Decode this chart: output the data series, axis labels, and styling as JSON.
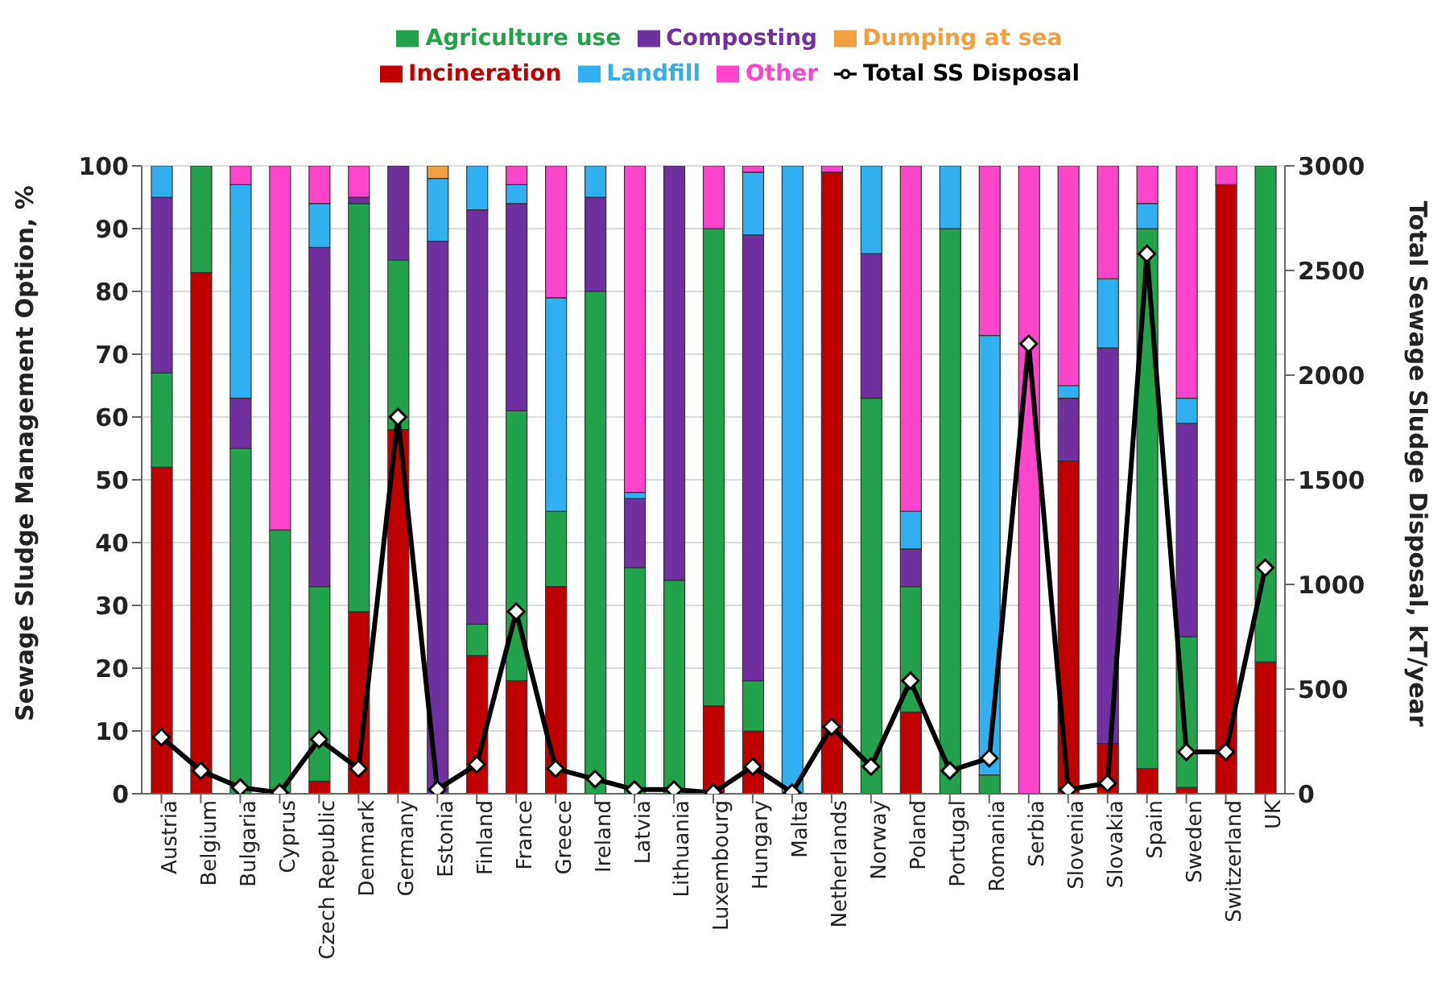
{
  "chart_data": {
    "type": "bar",
    "stacked": true,
    "xlabel": null,
    "ylabel": "Sewage Sludge Management Option, %",
    "y2label": "Total Sewage Sludge Disposal, kT/year",
    "categories": [
      "Austria",
      "Belgium",
      "Bulgaria",
      "Cyprus",
      "Czech Republic",
      "Denmark",
      "Germany",
      "Estonia",
      "Finland",
      "France",
      "Greece",
      "Ireland",
      "Latvia",
      "Lithuania",
      "Luxembourg",
      "Hungary",
      "Malta",
      "Netherlands",
      "Norway",
      "Poland",
      "Portugal",
      "Romania",
      "Serbia",
      "Slovenia",
      "Slovakia",
      "Spain",
      "Sweden",
      "Switzerland",
      "UK"
    ],
    "series": [
      {
        "name": "Incineration",
        "color": "#c00000",
        "values": [
          52,
          83,
          0,
          0,
          2,
          29,
          58,
          0,
          22,
          18,
          33,
          0,
          0,
          0,
          14,
          10,
          0,
          99,
          0,
          13,
          0,
          0,
          0,
          53,
          8,
          4,
          1,
          97,
          21
        ]
      },
      {
        "name": "Agriculture use",
        "color": "#22a24a",
        "values": [
          15,
          17,
          55,
          42,
          31,
          65,
          27,
          0,
          5,
          43,
          12,
          80,
          36,
          34,
          76,
          8,
          0,
          0,
          63,
          20,
          90,
          3,
          0,
          0,
          0,
          86,
          24,
          0,
          79
        ]
      },
      {
        "name": "Composting",
        "color": "#7030a0",
        "values": [
          28,
          0,
          8,
          0,
          54,
          1,
          15,
          88,
          66,
          33,
          0,
          15,
          11,
          66,
          0,
          71,
          0,
          0,
          23,
          6,
          0,
          0,
          0,
          10,
          63,
          0,
          34,
          0,
          0
        ]
      },
      {
        "name": "Landfill",
        "color": "#30b0f0",
        "values": [
          5,
          0,
          34,
          0,
          7,
          0,
          0,
          10,
          7,
          3,
          34,
          5,
          1,
          0,
          0,
          10,
          100,
          0,
          14,
          6,
          10,
          70,
          0,
          2,
          11,
          4,
          4,
          0,
          0
        ]
      },
      {
        "name": "Dumping at sea",
        "color": "#f0a040",
        "values": [
          0,
          0,
          0,
          0,
          0,
          0,
          0,
          2,
          0,
          0,
          0,
          0,
          0,
          0,
          0,
          0,
          0,
          0,
          0,
          0,
          0,
          0,
          0,
          0,
          0,
          0,
          0,
          0,
          0
        ]
      },
      {
        "name": "Other",
        "color": "#ff44cc",
        "values": [
          0,
          0,
          3,
          58,
          6,
          5,
          0,
          0,
          0,
          3,
          21,
          0,
          52,
          0,
          10,
          1,
          0,
          1,
          0,
          55,
          0,
          27,
          100,
          35,
          18,
          6,
          37,
          3,
          0
        ]
      },
      {
        "name": "Total SS Disposal",
        "type": "line",
        "axis": "y2",
        "color": "#000000",
        "marker": "diamond",
        "values": [
          270,
          110,
          30,
          5,
          260,
          120,
          1800,
          20,
          140,
          870,
          120,
          70,
          20,
          20,
          5,
          130,
          5,
          320,
          130,
          540,
          110,
          170,
          2150,
          20,
          50,
          2580,
          200,
          200,
          1080
        ]
      }
    ],
    "ylim": [
      0,
      100
    ],
    "yticks": [
      0,
      10,
      20,
      30,
      40,
      50,
      60,
      70,
      80,
      90,
      100
    ],
    "y2lim": [
      0,
      3000
    ],
    "y2ticks": [
      0,
      500,
      1000,
      1500,
      2000,
      2500,
      3000
    ],
    "grid": "y",
    "legend": "top"
  }
}
